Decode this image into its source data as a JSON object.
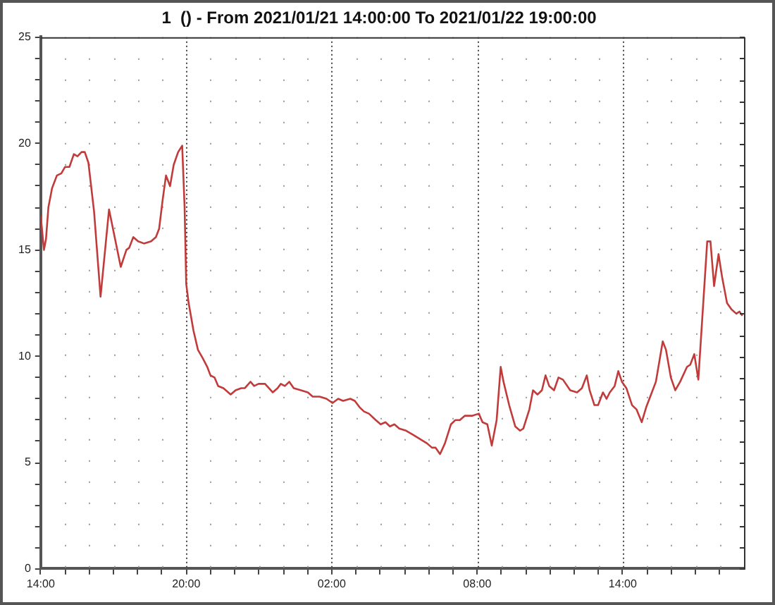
{
  "chart_data": {
    "type": "line",
    "title": "1  () - From 2021/01/21 14:00:00 To 2021/01/22 19:00:00",
    "color": "#c23b3b",
    "marker": "none",
    "line_style": "solid",
    "grid": "x",
    "x": [
      "2021-01-21T14:00",
      "2021-01-21T14:08",
      "2021-01-21T14:13",
      "2021-01-21T14:19",
      "2021-01-21T14:28",
      "2021-01-21T14:40",
      "2021-01-21T14:51",
      "2021-01-21T15:00",
      "2021-01-21T15:11",
      "2021-01-21T15:22",
      "2021-01-21T15:31",
      "2021-01-21T15:41",
      "2021-01-21T15:49",
      "2021-01-21T15:58",
      "2021-01-21T16:12",
      "2021-01-21T16:28",
      "2021-01-21T16:49",
      "2021-01-21T17:18",
      "2021-01-21T17:32",
      "2021-01-21T17:39",
      "2021-01-21T17:49",
      "2021-01-21T18:01",
      "2021-01-21T18:16",
      "2021-01-21T18:33",
      "2021-01-21T18:45",
      "2021-01-21T18:53",
      "2021-01-21T19:02",
      "2021-01-21T19:10",
      "2021-01-21T19:20",
      "2021-01-21T19:29",
      "2021-01-21T19:40",
      "2021-01-21T19:50",
      "2021-01-21T19:56",
      "2021-01-21T20:00",
      "2021-01-21T20:06",
      "2021-01-21T20:18",
      "2021-01-21T20:29",
      "2021-01-21T20:41",
      "2021-01-21T20:52",
      "2021-01-21T21:00",
      "2021-01-21T21:10",
      "2021-01-21T21:19",
      "2021-01-21T21:32",
      "2021-01-21T21:50",
      "2021-01-21T22:02",
      "2021-01-21T22:16",
      "2021-01-21T22:25",
      "2021-01-21T22:39",
      "2021-01-21T22:48",
      "2021-01-21T22:59",
      "2021-01-21T23:15",
      "2021-01-21T23:34",
      "2021-01-21T23:46",
      "2021-01-21T23:54",
      "2021-01-22T00:04",
      "2021-01-22T00:15",
      "2021-01-22T00:26",
      "2021-01-22T00:44",
      "2021-01-22T01:01",
      "2021-01-22T01:13",
      "2021-01-22T01:30",
      "2021-01-22T01:47",
      "2021-01-22T02:02",
      "2021-01-22T02:16",
      "2021-01-22T02:28",
      "2021-01-22T02:46",
      "2021-01-22T02:57",
      "2021-01-22T03:09",
      "2021-01-22T03:20",
      "2021-01-22T03:32",
      "2021-01-22T03:49",
      "2021-01-22T04:01",
      "2021-01-22T04:13",
      "2021-01-22T04:24",
      "2021-01-22T04:35",
      "2021-01-22T04:47",
      "2021-01-22T05:04",
      "2021-01-22T05:22",
      "2021-01-22T05:39",
      "2021-01-22T05:56",
      "2021-01-22T06:08",
      "2021-01-22T06:17",
      "2021-01-22T06:28",
      "2021-01-22T06:40",
      "2021-01-22T06:55",
      "2021-01-22T07:06",
      "2021-01-22T07:17",
      "2021-01-22T07:29",
      "2021-01-22T07:47",
      "2021-01-22T08:04",
      "2021-01-22T08:13",
      "2021-01-22T08:25",
      "2021-01-22T08:36",
      "2021-01-22T08:48",
      "2021-01-22T08:58",
      "2021-01-22T09:05",
      "2021-01-22T09:19",
      "2021-01-22T09:34",
      "2021-01-22T09:46",
      "2021-01-22T09:54",
      "2021-01-22T10:09",
      "2021-01-22T10:18",
      "2021-01-22T10:29",
      "2021-01-22T10:40",
      "2021-01-22T10:49",
      "2021-01-22T10:58",
      "2021-01-22T11:10",
      "2021-01-22T11:21",
      "2021-01-22T11:32",
      "2021-01-22T11:50",
      "2021-01-22T12:07",
      "2021-01-22T12:19",
      "2021-01-22T12:31",
      "2021-01-22T12:38",
      "2021-01-22T12:50",
      "2021-01-22T12:59",
      "2021-01-22T13:11",
      "2021-01-22T13:20",
      "2021-01-22T13:28",
      "2021-01-22T13:40",
      "2021-01-22T13:49",
      "2021-01-22T13:58",
      "2021-01-22T14:09",
      "2021-01-22T14:23",
      "2021-01-22T14:34",
      "2021-01-22T14:47",
      "2021-01-22T14:58",
      "2021-01-22T15:10",
      "2021-01-22T15:22",
      "2021-01-22T15:39",
      "2021-01-22T15:47",
      "2021-01-22T15:59",
      "2021-01-22T16:10",
      "2021-01-22T16:22",
      "2021-01-22T16:39",
      "2021-01-22T16:47",
      "2021-01-22T16:57",
      "2021-01-22T17:07",
      "2021-01-22T17:29",
      "2021-01-22T17:37",
      "2021-01-22T17:46",
      "2021-01-22T17:57",
      "2021-01-22T18:06",
      "2021-01-22T18:18",
      "2021-01-22T18:29",
      "2021-01-22T18:41",
      "2021-01-22T18:49",
      "2021-01-22T18:56"
    ],
    "values": [
      16.6,
      15.0,
      15.5,
      17.0,
      17.9,
      18.5,
      18.6,
      18.9,
      18.9,
      19.5,
      19.4,
      19.6,
      19.6,
      19.1,
      16.8,
      12.8,
      16.9,
      14.2,
      15.0,
      15.1,
      15.6,
      15.4,
      15.3,
      15.4,
      15.6,
      16.0,
      17.4,
      18.5,
      18.0,
      19.0,
      19.6,
      19.9,
      17.0,
      13.4,
      12.5,
      11.2,
      10.3,
      9.9,
      9.5,
      9.1,
      9.0,
      8.6,
      8.5,
      8.2,
      8.4,
      8.5,
      8.5,
      8.8,
      8.6,
      8.7,
      8.7,
      8.3,
      8.5,
      8.7,
      8.6,
      8.8,
      8.5,
      8.4,
      8.3,
      8.1,
      8.1,
      8.0,
      7.8,
      8.0,
      7.9,
      8.0,
      7.9,
      7.6,
      7.4,
      7.3,
      7.0,
      6.8,
      6.9,
      6.7,
      6.8,
      6.6,
      6.5,
      6.3,
      6.1,
      5.9,
      5.7,
      5.7,
      5.4,
      5.9,
      6.8,
      7.0,
      7.0,
      7.2,
      7.2,
      7.3,
      6.9,
      6.8,
      5.8,
      7.0,
      9.5,
      8.8,
      7.7,
      6.7,
      6.5,
      6.6,
      7.5,
      8.4,
      8.2,
      8.4,
      9.1,
      8.6,
      8.4,
      9.0,
      8.9,
      8.4,
      8.3,
      8.5,
      9.1,
      8.4,
      7.7,
      7.7,
      8.3,
      8.0,
      8.3,
      8.6,
      9.3,
      8.8,
      8.5,
      7.7,
      7.5,
      6.9,
      7.6,
      8.2,
      8.8,
      10.7,
      10.3,
      9.0,
      8.4,
      8.8,
      9.5,
      9.6,
      10.1,
      8.9,
      15.4,
      15.4,
      13.3,
      14.8,
      13.7,
      12.5,
      12.2,
      12.0,
      12.1,
      11.9
    ],
    "xlim": [
      "2021-01-21T14:00",
      "2021-01-22T19:00"
    ],
    "xticks": [
      {
        "value": "2021-01-21T14:00",
        "label": "14:00"
      },
      {
        "value": "2021-01-21T15:00",
        "label": null
      },
      {
        "value": "2021-01-21T16:00",
        "label": null
      },
      {
        "value": "2021-01-21T17:00",
        "label": null
      },
      {
        "value": "2021-01-21T18:00",
        "label": null
      },
      {
        "value": "2021-01-21T19:00",
        "label": null
      },
      {
        "value": "2021-01-21T20:00",
        "label": "20:00"
      },
      {
        "value": "2021-01-21T21:00",
        "label": null
      },
      {
        "value": "2021-01-21T22:00",
        "label": null
      },
      {
        "value": "2021-01-21T23:00",
        "label": null
      },
      {
        "value": "2021-01-22T00:00",
        "label": null
      },
      {
        "value": "2021-01-22T01:00",
        "label": null
      },
      {
        "value": "2021-01-22T02:00",
        "label": "02:00"
      },
      {
        "value": "2021-01-22T03:00",
        "label": null
      },
      {
        "value": "2021-01-22T04:00",
        "label": null
      },
      {
        "value": "2021-01-22T05:00",
        "label": null
      },
      {
        "value": "2021-01-22T06:00",
        "label": null
      },
      {
        "value": "2021-01-22T07:00",
        "label": null
      },
      {
        "value": "2021-01-22T08:00",
        "label": "08:00"
      },
      {
        "value": "2021-01-22T09:00",
        "label": null
      },
      {
        "value": "2021-01-22T10:00",
        "label": null
      },
      {
        "value": "2021-01-22T11:00",
        "label": null
      },
      {
        "value": "2021-01-22T12:00",
        "label": null
      },
      {
        "value": "2021-01-22T13:00",
        "label": null
      },
      {
        "value": "2021-01-22T14:00",
        "label": "14:00"
      },
      {
        "value": "2021-01-22T15:00",
        "label": null
      },
      {
        "value": "2021-01-22T16:00",
        "label": null
      },
      {
        "value": "2021-01-22T17:00",
        "label": null
      },
      {
        "value": "2021-01-22T18:00",
        "label": null
      }
    ],
    "ylim": [
      0,
      25
    ],
    "yticks": [
      0,
      {
        "value": 1,
        "label": null
      },
      {
        "value": 2,
        "label": null
      },
      {
        "value": 3,
        "label": null
      },
      {
        "value": 4,
        "label": null
      },
      5,
      {
        "value": 6,
        "label": null
      },
      {
        "value": 7,
        "label": null
      },
      {
        "value": 8,
        "label": null
      },
      {
        "value": 9,
        "label": null
      },
      10,
      {
        "value": 11,
        "label": null
      },
      {
        "value": 12,
        "label": null
      },
      {
        "value": 13,
        "label": null
      },
      {
        "value": 14,
        "label": null
      },
      15,
      {
        "value": 16,
        "label": null
      },
      {
        "value": 17,
        "label": null
      },
      {
        "value": 18,
        "label": null
      },
      {
        "value": 19,
        "label": null
      },
      20,
      {
        "value": 21,
        "label": null
      },
      {
        "value": 22,
        "label": null
      },
      {
        "value": 23,
        "label": null
      },
      {
        "value": 24,
        "label": null
      },
      25
    ]
  }
}
